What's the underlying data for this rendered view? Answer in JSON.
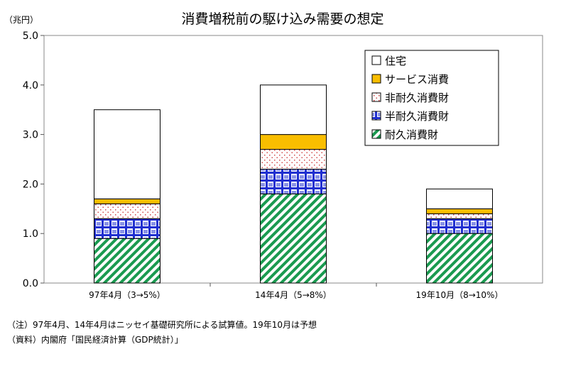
{
  "chart_data": {
    "type": "bar",
    "stacked": true,
    "title": "消費増税前の駆け込み需要の想定",
    "ylabel": "（兆円）",
    "xlabel": "",
    "ylim": [
      0,
      5
    ],
    "yticks": [
      "0.0",
      "1.0",
      "2.0",
      "3.0",
      "4.0",
      "5.0"
    ],
    "categories": [
      "97年4月（3→5%）",
      "14年4月（5→8%）",
      "19年10月（8→10%）"
    ],
    "series": [
      {
        "name": "耐久消費財",
        "values": [
          0.9,
          1.8,
          1.0
        ],
        "color": "#1a9a50",
        "pattern": "diagonal-stripes"
      },
      {
        "name": "半耐久消費財",
        "values": [
          0.4,
          0.5,
          0.3
        ],
        "color": "#1f2fd0",
        "pattern": "grid"
      },
      {
        "name": "非耐久消費財",
        "values": [
          0.3,
          0.4,
          0.1
        ],
        "color": "#d04848",
        "pattern": "dots"
      },
      {
        "name": "サービス消費",
        "values": [
          0.1,
          0.3,
          0.1
        ],
        "color": "#f9be00",
        "pattern": "solid"
      },
      {
        "name": "住宅",
        "values": [
          1.8,
          1.0,
          0.4
        ],
        "color": "#ffffff",
        "pattern": "solid"
      }
    ],
    "legend_order": [
      "住宅",
      "サービス消費",
      "非耐久消費財",
      "半耐久消費財",
      "耐久消費財"
    ],
    "legend_position": "top-right",
    "grid": false
  },
  "notes": {
    "note": "（注）97年4月、14年4月はニッセイ基礎研究所による試算値。19年10月は予想",
    "source": "（資料）内閣府「国民経済計算（GDP統計）」"
  }
}
